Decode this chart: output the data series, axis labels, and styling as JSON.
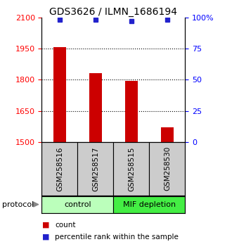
{
  "title": "GDS3626 / ILMN_1686194",
  "samples": [
    "GSM258516",
    "GSM258517",
    "GSM258515",
    "GSM258530"
  ],
  "bar_values": [
    1957,
    1832,
    1793,
    1570
  ],
  "bar_bottom": 1500,
  "percentile_values": [
    98,
    98,
    97,
    98
  ],
  "bar_color": "#cc0000",
  "dot_color": "#2222cc",
  "ylim_left": [
    1500,
    2100
  ],
  "ylim_right": [
    0,
    100
  ],
  "yticks_left": [
    1500,
    1650,
    1800,
    1950,
    2100
  ],
  "yticks_right": [
    0,
    25,
    50,
    75,
    100
  ],
  "ytick_labels_right": [
    "0",
    "25",
    "50",
    "75",
    "100%"
  ],
  "groups": [
    {
      "label": "control",
      "indices": [
        0,
        1
      ],
      "color": "#bbffbb"
    },
    {
      "label": "MIF depletion",
      "indices": [
        2,
        3
      ],
      "color": "#44ee44"
    }
  ],
  "protocol_label": "protocol",
  "legend_count_label": "count",
  "legend_pct_label": "percentile rank within the sample",
  "bg_color": "#cccccc",
  "title_fontsize": 10,
  "tick_fontsize": 8,
  "bar_width": 0.35
}
